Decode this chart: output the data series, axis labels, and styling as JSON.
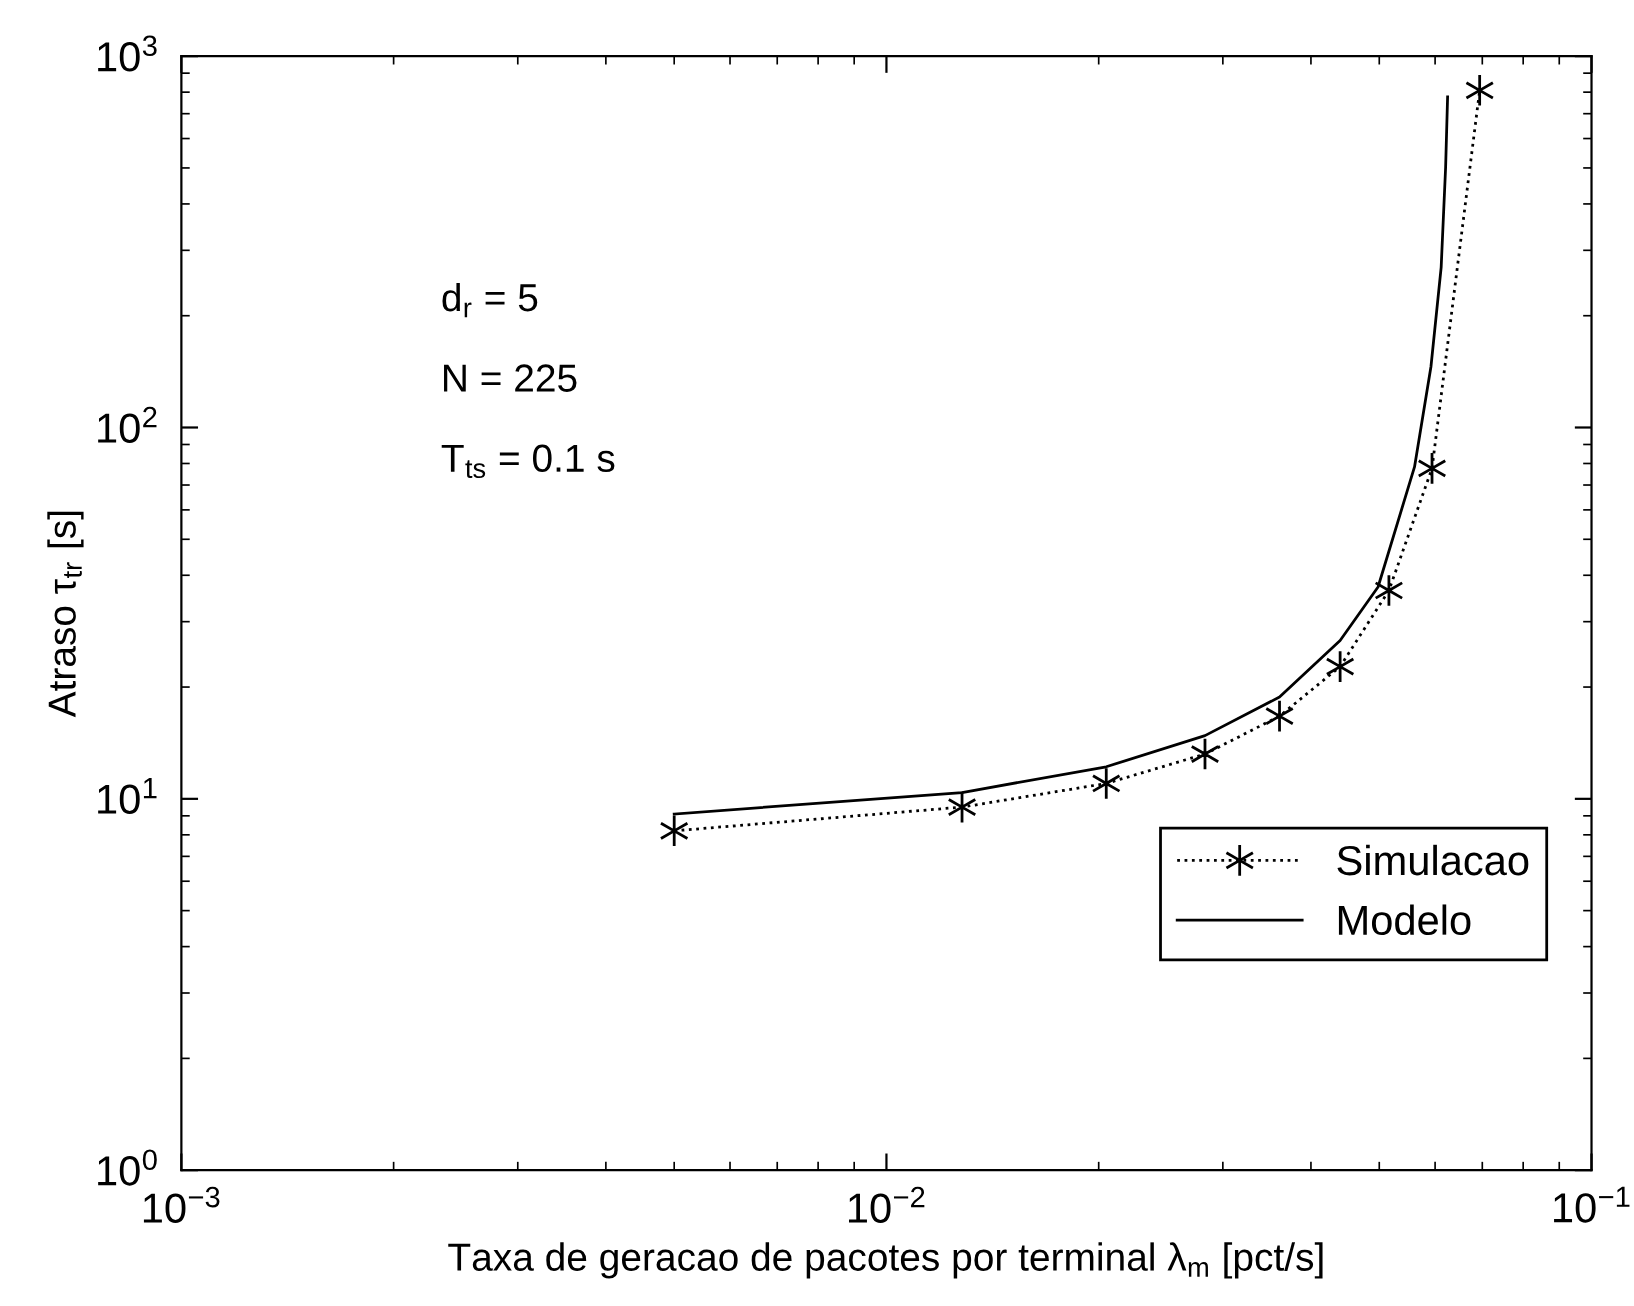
{
  "chart_data": {
    "type": "line",
    "xlabel": "Taxa de geracao de pacotes por terminal λ$_{m}$ [pct/s]",
    "ylabel": "Atraso τ$_{tr}$ [s]",
    "log": "xy",
    "grid": false,
    "legend": "bottom right",
    "xlim": [
      0.001,
      0.1
    ],
    "ylim": [
      1,
      1000
    ],
    "xticks": [
      {
        "value": 0.001,
        "label": "10$^{−3}$"
      },
      {
        "value": 0.01,
        "label": "10$^{−2}$"
      },
      {
        "value": 0.1,
        "label": "10$^{−1}$"
      }
    ],
    "yticks": [
      {
        "value": 1,
        "label": "10$^{0}$"
      },
      {
        "value": 10,
        "label": "10$^{1}$"
      },
      {
        "value": 100,
        "label": "10$^{2}$"
      },
      {
        "value": 1000,
        "label": "10$^{3}$"
      }
    ],
    "annotations": [
      "d$_{r}$ = 5",
      "N = 225",
      "T$_{ts}$ = 0.1 s"
    ],
    "series": [
      {
        "name": "Simulacao",
        "color": "#000000",
        "marker": "cross",
        "line_style": "dotted",
        "x": [
          0.005,
          0.0128,
          0.0205,
          0.0283,
          0.0361,
          0.044,
          0.0516,
          0.0594,
          0.0694
        ],
        "values": [
          8.2,
          9.5,
          11.0,
          13.2,
          16.7,
          22.7,
          36.4,
          77.6,
          809
        ]
      },
      {
        "name": "Modelo",
        "color": "#000000",
        "marker": "none",
        "line_style": "solid",
        "x": [
          0.005,
          0.0128,
          0.0205,
          0.0283,
          0.0361,
          0.044,
          0.0498,
          0.0561,
          0.0592,
          0.0612,
          0.0621,
          0.0625
        ],
        "values": [
          9.1,
          10.4,
          12.2,
          14.8,
          18.8,
          26.7,
          37.2,
          78.3,
          146,
          270,
          503,
          777
        ]
      }
    ]
  }
}
